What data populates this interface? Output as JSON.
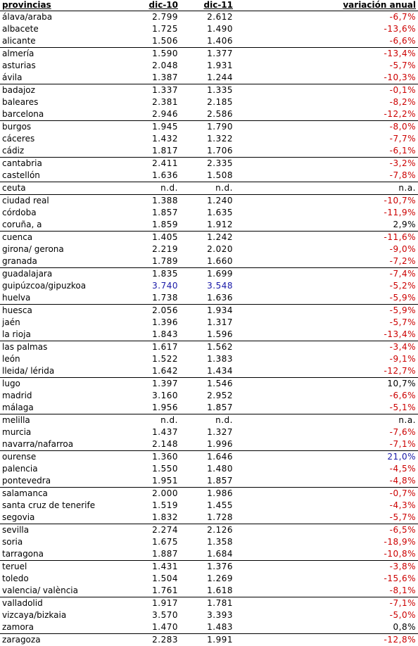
{
  "headers": {
    "province": "provincias",
    "dec10": "dic-10",
    "dec11": "dic-11",
    "change": "variación anual"
  },
  "colors": {
    "negative": "#cc0000",
    "highlight": "#1a1aa8",
    "text": "#000000"
  },
  "rows": [
    {
      "name": "álava/araba",
      "d10": "2.799",
      "d11": "2.612",
      "var": "-6,7%",
      "tone": "neg",
      "tone10": "",
      "group_start": true
    },
    {
      "name": "albacete",
      "d10": "1.725",
      "d11": "1.490",
      "var": "-13,6%",
      "tone": "neg",
      "tone10": "",
      "group_start": false
    },
    {
      "name": "alicante",
      "d10": "1.506",
      "d11": "1.406",
      "var": "-6,6%",
      "tone": "neg",
      "tone10": "",
      "group_start": false
    },
    {
      "name": "almería",
      "d10": "1.590",
      "d11": "1.377",
      "var": "-13,4%",
      "tone": "neg",
      "tone10": "",
      "group_start": true
    },
    {
      "name": "asturias",
      "d10": "2.048",
      "d11": "1.931",
      "var": "-5,7%",
      "tone": "neg",
      "tone10": "",
      "group_start": false
    },
    {
      "name": "ávila",
      "d10": "1.387",
      "d11": "1.244",
      "var": "-10,3%",
      "tone": "neg",
      "tone10": "",
      "group_start": false
    },
    {
      "name": "badajoz",
      "d10": "1.337",
      "d11": "1.335",
      "var": "-0,1%",
      "tone": "neg",
      "tone10": "",
      "group_start": true
    },
    {
      "name": "baleares",
      "d10": "2.381",
      "d11": "2.185",
      "var": "-8,2%",
      "tone": "neg",
      "tone10": "",
      "group_start": false
    },
    {
      "name": "barcelona",
      "d10": "2.946",
      "d11": "2.586",
      "var": "-12,2%",
      "tone": "neg",
      "tone10": "",
      "group_start": false
    },
    {
      "name": "burgos",
      "d10": "1.945",
      "d11": "1.790",
      "var": "-8,0%",
      "tone": "neg",
      "tone10": "",
      "group_start": true
    },
    {
      "name": "cáceres",
      "d10": "1.432",
      "d11": "1.322",
      "var": "-7,7%",
      "tone": "neg",
      "tone10": "",
      "group_start": false
    },
    {
      "name": "cádiz",
      "d10": "1.817",
      "d11": "1.706",
      "var": "-6,1%",
      "tone": "neg",
      "tone10": "",
      "group_start": false
    },
    {
      "name": "cantabria",
      "d10": "2.411",
      "d11": "2.335",
      "var": "-3,2%",
      "tone": "neg",
      "tone10": "",
      "group_start": true
    },
    {
      "name": "castellón",
      "d10": "1.636",
      "d11": "1.508",
      "var": "-7,8%",
      "tone": "neg",
      "tone10": "",
      "group_start": false
    },
    {
      "name": "ceuta",
      "d10": "n.d.",
      "d11": "n.d.",
      "var": "n.a.",
      "tone": "na",
      "tone10": "",
      "group_start": true
    },
    {
      "name": "ciudad real",
      "d10": "1.388",
      "d11": "1.240",
      "var": "-10,7%",
      "tone": "neg",
      "tone10": "",
      "group_start": true
    },
    {
      "name": "córdoba",
      "d10": "1.857",
      "d11": "1.635",
      "var": "-11,9%",
      "tone": "neg",
      "tone10": "",
      "group_start": false
    },
    {
      "name": "coruña, a",
      "d10": "1.859",
      "d11": "1.912",
      "var": "2,9%",
      "tone": "pos",
      "tone10": "",
      "group_start": false
    },
    {
      "name": "cuenca",
      "d10": "1.405",
      "d11": "1.242",
      "var": "-11,6%",
      "tone": "neg",
      "tone10": "",
      "group_start": true
    },
    {
      "name": "girona/ gerona",
      "d10": "2.219",
      "d11": "2.020",
      "var": "-9,0%",
      "tone": "neg",
      "tone10": "",
      "group_start": false
    },
    {
      "name": "granada",
      "d10": "1.789",
      "d11": "1.660",
      "var": "-7,2%",
      "tone": "neg",
      "tone10": "",
      "group_start": false
    },
    {
      "name": "guadalajara",
      "d10": "1.835",
      "d11": "1.699",
      "var": "-7,4%",
      "tone": "neg",
      "tone10": "",
      "group_start": true
    },
    {
      "name": "guipúzcoa/gipuzkoa",
      "d10": "3.740",
      "d11": "3.548",
      "var": "-5,2%",
      "tone": "neg",
      "tone10": "hi",
      "group_start": false
    },
    {
      "name": "huelva",
      "d10": "1.738",
      "d11": "1.636",
      "var": "-5,9%",
      "tone": "neg",
      "tone10": "",
      "group_start": false
    },
    {
      "name": "huesca",
      "d10": "2.056",
      "d11": "1.934",
      "var": "-5,9%",
      "tone": "neg",
      "tone10": "",
      "group_start": true
    },
    {
      "name": "jaén",
      "d10": "1.396",
      "d11": "1.317",
      "var": "-5,7%",
      "tone": "neg",
      "tone10": "",
      "group_start": false
    },
    {
      "name": "la rioja",
      "d10": "1.843",
      "d11": "1.596",
      "var": "-13,4%",
      "tone": "neg",
      "tone10": "",
      "group_start": false
    },
    {
      "name": "las palmas",
      "d10": "1.617",
      "d11": "1.562",
      "var": "-3,4%",
      "tone": "neg",
      "tone10": "",
      "group_start": true
    },
    {
      "name": "león",
      "d10": "1.522",
      "d11": "1.383",
      "var": "-9,1%",
      "tone": "neg",
      "tone10": "",
      "group_start": false
    },
    {
      "name": "lleida/ lérida",
      "d10": "1.642",
      "d11": "1.434",
      "var": "-12,7%",
      "tone": "neg",
      "tone10": "",
      "group_start": false
    },
    {
      "name": "lugo",
      "d10": "1.397",
      "d11": "1.546",
      "var": "10,7%",
      "tone": "pos",
      "tone10": "",
      "group_start": true
    },
    {
      "name": "madrid",
      "d10": "3.160",
      "d11": "2.952",
      "var": "-6,6%",
      "tone": "neg",
      "tone10": "",
      "group_start": false
    },
    {
      "name": "málaga",
      "d10": "1.956",
      "d11": "1.857",
      "var": "-5,1%",
      "tone": "neg",
      "tone10": "",
      "group_start": false
    },
    {
      "name": "melilla",
      "d10": "n.d.",
      "d11": "n.d.",
      "var": "n.a.",
      "tone": "na",
      "tone10": "",
      "group_start": true
    },
    {
      "name": "murcia",
      "d10": "1.437",
      "d11": "1.327",
      "var": "-7,6%",
      "tone": "neg",
      "tone10": "",
      "group_start": false
    },
    {
      "name": "navarra/nafarroa",
      "d10": "2.148",
      "d11": "1.996",
      "var": "-7,1%",
      "tone": "neg",
      "tone10": "",
      "group_start": false
    },
    {
      "name": "ourense",
      "d10": "1.360",
      "d11": "1.646",
      "var": "21,0%",
      "tone": "hi",
      "tone10": "",
      "group_start": true
    },
    {
      "name": "palencia",
      "d10": "1.550",
      "d11": "1.480",
      "var": "-4,5%",
      "tone": "neg",
      "tone10": "",
      "group_start": false
    },
    {
      "name": "pontevedra",
      "d10": "1.951",
      "d11": "1.857",
      "var": "-4,8%",
      "tone": "neg",
      "tone10": "",
      "group_start": false
    },
    {
      "name": "salamanca",
      "d10": "2.000",
      "d11": "1.986",
      "var": "-0,7%",
      "tone": "neg",
      "tone10": "",
      "group_start": true
    },
    {
      "name": "santa cruz de tenerife",
      "d10": "1.519",
      "d11": "1.455",
      "var": "-4,3%",
      "tone": "neg",
      "tone10": "",
      "group_start": false
    },
    {
      "name": "segovia",
      "d10": "1.832",
      "d11": "1.728",
      "var": "-5,7%",
      "tone": "neg",
      "tone10": "",
      "group_start": false
    },
    {
      "name": "sevilla",
      "d10": "2.274",
      "d11": "2.126",
      "var": "-6,5%",
      "tone": "neg",
      "tone10": "",
      "group_start": true
    },
    {
      "name": "soria",
      "d10": "1.675",
      "d11": "1.358",
      "var": "-18,9%",
      "tone": "neg",
      "tone10": "",
      "group_start": false
    },
    {
      "name": "tarragona",
      "d10": "1.887",
      "d11": "1.684",
      "var": "-10,8%",
      "tone": "neg",
      "tone10": "",
      "group_start": false
    },
    {
      "name": "teruel",
      "d10": "1.431",
      "d11": "1.376",
      "var": "-3,8%",
      "tone": "neg",
      "tone10": "",
      "group_start": true
    },
    {
      "name": "toledo",
      "d10": "1.504",
      "d11": "1.269",
      "var": "-15,6%",
      "tone": "neg",
      "tone10": "",
      "group_start": false
    },
    {
      "name": "valencia/ valència",
      "d10": "1.761",
      "d11": "1.618",
      "var": "-8,1%",
      "tone": "neg",
      "tone10": "",
      "group_start": false
    },
    {
      "name": "valladolid",
      "d10": "1.917",
      "d11": "1.781",
      "var": "-7,1%",
      "tone": "neg",
      "tone10": "",
      "group_start": true
    },
    {
      "name": "vizcaya/bizkaia",
      "d10": "3.570",
      "d11": "3.393",
      "var": "-5,0%",
      "tone": "neg",
      "tone10": "",
      "group_start": false
    },
    {
      "name": "zamora",
      "d10": "1.470",
      "d11": "1.483",
      "var": "0,8%",
      "tone": "pos",
      "tone10": "",
      "group_start": false
    },
    {
      "name": "zaragoza",
      "d10": "2.283",
      "d11": "1.991",
      "var": "-12,8%",
      "tone": "neg",
      "tone10": "",
      "group_start": true
    }
  ]
}
